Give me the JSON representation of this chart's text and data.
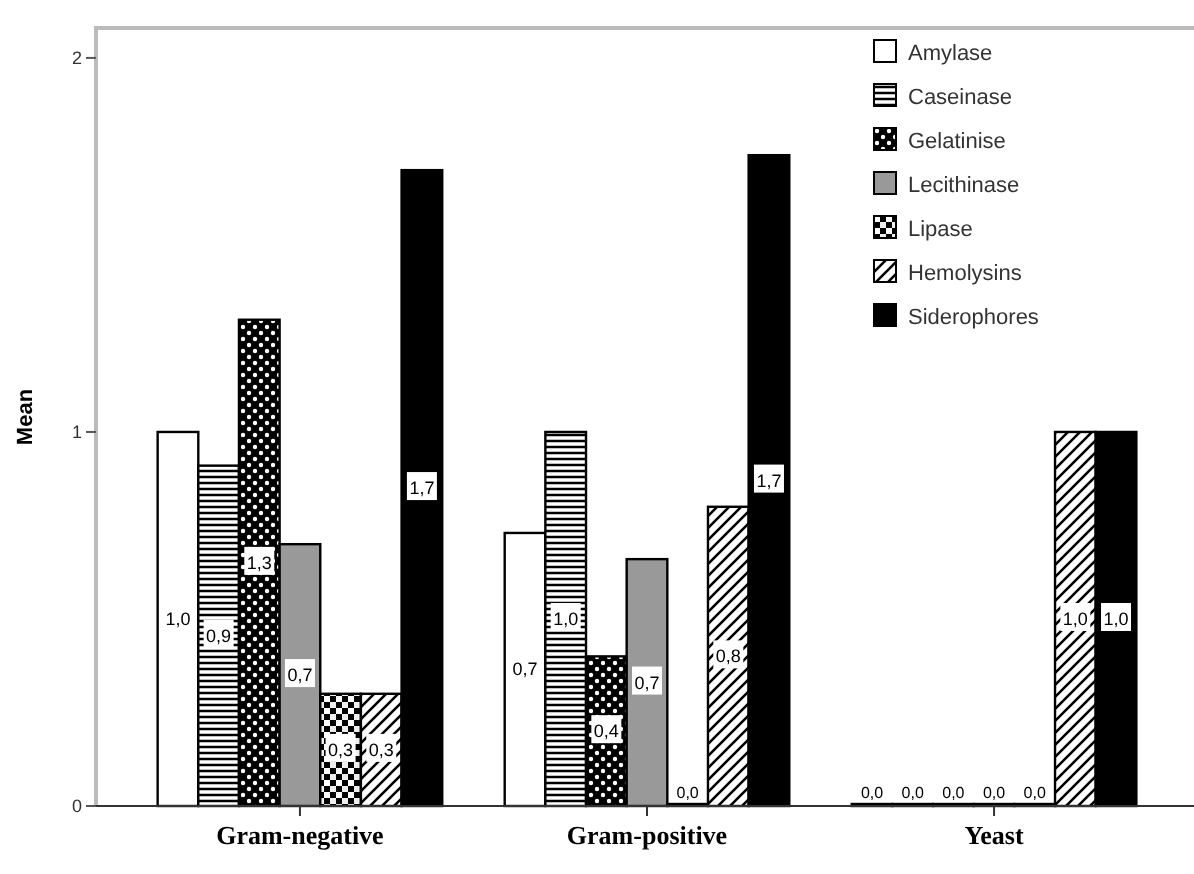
{
  "chart_data": {
    "type": "bar",
    "ylabel": "Mean",
    "categories": [
      "Gram-negative",
      "Gram-positive",
      "Yeast"
    ],
    "ylim": [
      0,
      2.08
    ],
    "yticks": [
      0,
      1,
      2
    ],
    "grid": false,
    "legend": "top right",
    "series": [
      {
        "name": "Amylase",
        "color": "#ffffff",
        "values": [
          1.0,
          0.73,
          0
        ],
        "value_labels": [
          "1,0",
          "0,7",
          "0,0"
        ]
      },
      {
        "name": "Caseinase",
        "color": "#000000",
        "values": [
          0.91,
          1.0,
          0
        ],
        "value_labels": [
          "0,9",
          "1,0",
          "0,0"
        ]
      },
      {
        "name": "Gelatinise",
        "color": "#000000",
        "values": [
          1.3,
          0.4,
          0
        ],
        "value_labels": [
          "1,3",
          "0,4",
          "0,0"
        ]
      },
      {
        "name": "Lecithinase",
        "color": "#999999",
        "values": [
          0.7,
          0.66,
          0
        ],
        "value_labels": [
          "0,7",
          "0,7",
          "0,0"
        ]
      },
      {
        "name": "Lipase",
        "color": "#000000",
        "values": [
          0.3,
          0,
          0
        ],
        "value_labels": [
          "0,3",
          "0,0",
          "0,0"
        ]
      },
      {
        "name": "Hemolysins",
        "color": "#000000",
        "values": [
          0.3,
          0.8,
          1.0
        ],
        "value_labels": [
          "0,3",
          "0,8",
          "1,0"
        ]
      },
      {
        "name": "Siderophores",
        "color": "#000000",
        "values": [
          1.7,
          1.74,
          1.0
        ],
        "value_labels": [
          "1,7",
          "1,7",
          "1,0"
        ]
      }
    ]
  }
}
